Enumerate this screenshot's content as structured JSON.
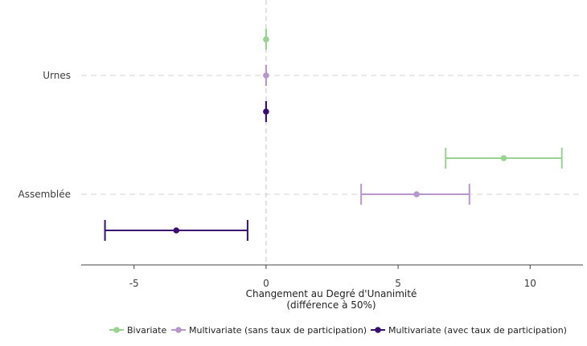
{
  "chart_data": {
    "type": "scatter",
    "subtype": "coefficient-plot-with-error-bars",
    "xlabel_line1": "Changement au Degré d'Unanimité",
    "xlabel_line2": "(différence à 50%)",
    "ylabel": "",
    "xlim": [
      -7,
      12
    ],
    "x_ticks": [
      -5,
      0,
      5,
      10
    ],
    "x_tick_labels": [
      "-5",
      "0",
      "5",
      "10"
    ],
    "categories": [
      "Urnes",
      "Assemblée"
    ],
    "grid": "horizontal dashed at categories",
    "reference_line_x": 0,
    "legend_position": "bottom",
    "series": [
      {
        "name": "Bivariate",
        "color": "#98d38f",
        "points": [
          {
            "category": "Urnes",
            "estimate": 0.0,
            "low": 0.0,
            "high": 0.0
          },
          {
            "category": "Assemblée",
            "estimate": 9.0,
            "low": 6.8,
            "high": 11.2
          }
        ]
      },
      {
        "name": "Multivariate (sans taux de participation)",
        "color": "#b996cd",
        "points": [
          {
            "category": "Urnes",
            "estimate": 0.0,
            "low": 0.0,
            "high": 0.0
          },
          {
            "category": "Assemblée",
            "estimate": 5.7,
            "low": 3.6,
            "high": 7.7
          }
        ]
      },
      {
        "name": "Multivariate (avec taux de participation)",
        "color": "#3b0f6f",
        "points": [
          {
            "category": "Urnes",
            "estimate": 0.0,
            "low": 0.0,
            "high": 0.0
          },
          {
            "category": "Assemblée",
            "estimate": -3.4,
            "low": -6.1,
            "high": -0.7
          }
        ]
      }
    ]
  }
}
